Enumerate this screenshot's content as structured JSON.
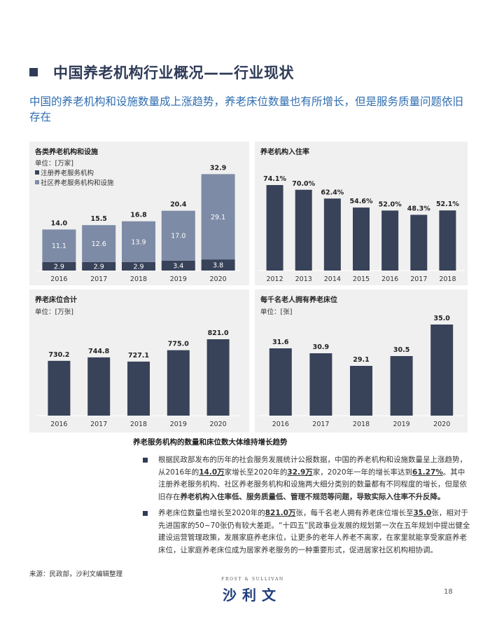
{
  "header": {
    "title": "中国养老机构行业概况——行业现状",
    "subtitle": "中国的养老机构和设施数量成上涨趋势，养老床位数量也有所增长，但是服务质量问题依旧存在"
  },
  "colors": {
    "dark": "#38435a",
    "light": "#7d8ba6",
    "panel_bg": "#f0f0f0",
    "title": "#2f3b57",
    "subtitle": "#2f6db0"
  },
  "chart_data": [
    {
      "id": "institutions",
      "type": "bar",
      "stacked": true,
      "title": "各类养老机构和设施",
      "unit": "单位：[万家]",
      "categories": [
        "2016",
        "2017",
        "2018",
        "2019",
        "2020"
      ],
      "series": [
        {
          "name": "注册养老服务机构",
          "color": "#38435a",
          "values": [
            2.9,
            2.9,
            2.9,
            3.4,
            3.8
          ]
        },
        {
          "name": "社区养老服务机构和设施",
          "color": "#7d8ba6",
          "values": [
            11.1,
            12.6,
            13.9,
            17.0,
            29.1
          ]
        }
      ],
      "totals": [
        14.0,
        15.5,
        16.8,
        20.4,
        32.9
      ],
      "total_labels": [
        "14.0",
        "15.5",
        "16.8",
        "20.4",
        "32.9"
      ],
      "series_labels": [
        [
          "2.9",
          "2.9",
          "2.9",
          "3.4",
          "3.8"
        ],
        [
          "11.1",
          "12.6",
          "13.9",
          "17.0",
          "29.1"
        ]
      ],
      "legend": "top-left"
    },
    {
      "id": "occupancy",
      "type": "bar",
      "title": "养老机构入住率",
      "categories": [
        "2012",
        "2013",
        "2014",
        "2015",
        "2016",
        "2017",
        "2018"
      ],
      "values": [
        74.1,
        70.0,
        62.4,
        54.6,
        52.0,
        48.3,
        52.1
      ],
      "value_labels": [
        "74.1%",
        "70.0%",
        "62.4%",
        "54.6%",
        "52.0%",
        "48.3%",
        "52.1%"
      ],
      "color": "#38435a"
    },
    {
      "id": "beds",
      "type": "bar",
      "title": "养老床位合计",
      "unit": "单位：[万张]",
      "categories": [
        "2016",
        "2017",
        "2018",
        "2019",
        "2020"
      ],
      "values": [
        730.2,
        744.8,
        727.1,
        775.0,
        821.0
      ],
      "value_labels": [
        "730.2",
        "744.8",
        "727.1",
        "775.0",
        "821.0"
      ],
      "color": "#38435a"
    },
    {
      "id": "beds_per_thousand",
      "type": "bar",
      "title": "每千名老人拥有养老床位",
      "unit": "单位：[张]",
      "categories": [
        "2016",
        "2017",
        "2018",
        "2019",
        "2020"
      ],
      "values": [
        31.6,
        30.9,
        29.1,
        30.5,
        35.0
      ],
      "value_labels": [
        "31.6",
        "30.9",
        "29.1",
        "30.5",
        "35.0"
      ],
      "color": "#38435a"
    }
  ],
  "caption": "养老服务机构的数量和床位数大体维持增长趋势",
  "bullets": {
    "b1": {
      "p1": "根据民政部发布的历年的社会服务发展统计公报数据，中国的养老机构和设施数量呈上涨趋势，从2016年的",
      "h1": "14.0万",
      "p2": "家增长至2020年的",
      "h2": "32.9万",
      "p3": "家，2020年一年的增长率达到",
      "h3": "61.27%",
      "p4": "。其中注册养老服务机构、社区养老服务机构和设施两大细分类别的数量都有不同程度的增长，但是依旧存在",
      "h4": "养老机构入住率低、服务质量低、管理不规范等问题，导致实际入住率不升反降。"
    },
    "b2": {
      "p1": "养老床位数量也增长至2020年的",
      "h1": "821.0万",
      "p2": "张，每千名老人拥有养老床位增长至",
      "h2": "35.0",
      "p3": "张，相对于先进国家的50~70张仍有较大差距。“十四五”民政事业发展的规划第一次在五年规划中提出健全建设运营管理政策，发展家庭养老床位，让更多的老年人养老不离家，在家里就能享受家庭养老床位，让家庭养老床位成为居家养老服务的一种重要形式，促进居家社区机构相协调。"
    }
  },
  "footer": {
    "source": "来源：民政部，沙利文编辑整理",
    "logo_en": "FROST & SULLIVAN",
    "logo_cn": "沙利文",
    "page": "18"
  }
}
